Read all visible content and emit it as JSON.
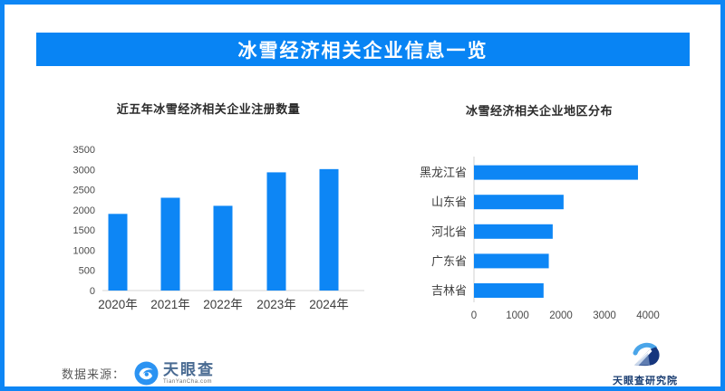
{
  "page": {
    "border_color": "#0d86f5",
    "background_color": "#ffffff"
  },
  "header": {
    "title": "冰雪经济相关企业信息一览",
    "bg_color": "#0884f4",
    "text_color": "#ffffff"
  },
  "chart_data": [
    {
      "type": "bar",
      "orientation": "vertical",
      "title": "近五年冰雪经济相关企业注册数量",
      "categories": [
        "2020年",
        "2021年",
        "2022年",
        "2023年",
        "2024年"
      ],
      "values": [
        1900,
        2300,
        2100,
        2930,
        3010
      ],
      "ylim": [
        0,
        3500
      ],
      "yticks": [
        0,
        500,
        1000,
        1500,
        2000,
        2500,
        3000,
        3500
      ],
      "xlabel": "",
      "ylabel": "",
      "grid": false,
      "legend": "none",
      "bar_color": "#0d86f5",
      "axis_line_color": "#e4e4e4",
      "tick_label_color": "#4a4a4a",
      "category_label_color": "#3d3d3d"
    },
    {
      "type": "bar",
      "orientation": "horizontal",
      "title": "冰雪经济相关企业地区分布",
      "categories": [
        "黑龙江省",
        "山东省",
        "河北省",
        "广东省",
        "吉林省"
      ],
      "values": [
        3770,
        2060,
        1810,
        1720,
        1600
      ],
      "xlim": [
        0,
        4000
      ],
      "xticks": [
        0,
        1000,
        2000,
        3000,
        4000
      ],
      "xlabel": "",
      "ylabel": "",
      "grid": false,
      "legend": "none",
      "bar_color": "#0d86f5",
      "axis_line_color": "#e0e0e0",
      "tick_label_color": "#4a4a4a",
      "category_label_color": "#3d3d3d"
    }
  ],
  "footer": {
    "source_label": "数据来源：",
    "source_logo_name": "天眼查",
    "source_logo_subtext": "TianYanCha.com",
    "source_logo_icon": "eye-swirl-icon",
    "source_logo_color": "#2b93f2",
    "brand_logo_text": "天眼查研究院",
    "brand_logo_icon": "eye-mountain-icon",
    "brand_navy_color": "#16367d",
    "brand_arc_color": "#4aa5e9"
  }
}
